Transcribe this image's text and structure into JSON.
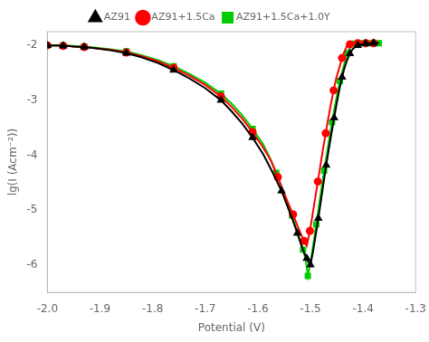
{
  "chart_data": {
    "type": "line",
    "xlabel": "Potential (V)",
    "ylabel": "lg(I (Acm⁻²))",
    "xlim": [
      -2.0,
      -1.3
    ],
    "ylim": [
      -6.5,
      -1.75
    ],
    "xticks": [
      {
        "value": -2.0,
        "label": "-2.0"
      },
      -1.9,
      -1.8,
      -1.7,
      -1.6,
      -1.5,
      -1.4,
      -1.3
    ],
    "yticks": [
      -6,
      -5,
      -4,
      -3,
      -2
    ],
    "grid": false,
    "legend": "top",
    "series": [
      {
        "name": "AZ91",
        "color": "black",
        "marker": "triangle",
        "x": [
          -2.0,
          -1.99,
          -1.98,
          -1.97,
          -1.96,
          -1.95,
          -1.93,
          -1.91,
          -1.88,
          -1.85,
          -1.82,
          -1.79,
          -1.76,
          -1.73,
          -1.7,
          -1.67,
          -1.65,
          -1.63,
          -1.61,
          -1.59,
          -1.57,
          -1.555,
          -1.545,
          -1.535,
          -1.525,
          -1.518,
          -1.512,
          -1.507,
          -1.503,
          -1.5,
          -1.5,
          -1.495,
          -1.49,
          -1.485,
          -1.48,
          -1.475,
          -1.47,
          -1.465,
          -1.46,
          -1.455,
          -1.45,
          -1.445,
          -1.44,
          -1.435,
          -1.43,
          -1.425,
          -1.42,
          -1.415,
          -1.41,
          -1.405,
          -1.4,
          -1.395,
          -1.39,
          -1.385,
          -1.38,
          -1.375,
          -1.37
        ],
        "values": [
          -2.0,
          -2.0,
          -2.0,
          -2.01,
          -2.01,
          -2.02,
          -2.03,
          -2.05,
          -2.09,
          -2.14,
          -2.22,
          -2.32,
          -2.45,
          -2.6,
          -2.78,
          -3.0,
          -3.2,
          -3.42,
          -3.68,
          -3.98,
          -4.35,
          -4.65,
          -4.9,
          -5.15,
          -5.42,
          -5.62,
          -5.78,
          -5.88,
          -5.96,
          -6.0,
          -6.0,
          -5.75,
          -5.45,
          -5.15,
          -4.82,
          -4.5,
          -4.18,
          -3.88,
          -3.6,
          -3.32,
          -3.05,
          -2.8,
          -2.58,
          -2.4,
          -2.26,
          -2.15,
          -2.07,
          -2.03,
          -2.0,
          -1.99,
          -1.98,
          -1.97,
          -1.97,
          -1.96,
          -1.96,
          -1.96,
          -1.95
        ]
      },
      {
        "name": "AZ91+1.5Ca",
        "color": "red",
        "marker": "circle",
        "x": [
          -2.0,
          -1.99,
          -1.98,
          -1.97,
          -1.96,
          -1.95,
          -1.93,
          -1.91,
          -1.88,
          -1.85,
          -1.82,
          -1.79,
          -1.76,
          -1.73,
          -1.7,
          -1.67,
          -1.65,
          -1.63,
          -1.61,
          -1.59,
          -1.575,
          -1.562,
          -1.552,
          -1.542,
          -1.533,
          -1.525,
          -1.518,
          -1.512,
          -1.507,
          -1.507,
          -1.501,
          -1.496,
          -1.491,
          -1.486,
          -1.481,
          -1.476,
          -1.471,
          -1.466,
          -1.461,
          -1.456,
          -1.451,
          -1.445,
          -1.44,
          -1.435,
          -1.43,
          -1.425,
          -1.42,
          -1.415,
          -1.41,
          -1.405,
          -1.4,
          -1.395,
          -1.39,
          -1.385,
          -1.38,
          -1.375,
          -1.37
        ],
        "values": [
          -2.0,
          -2.0,
          -2.0,
          -2.01,
          -2.01,
          -2.02,
          -2.03,
          -2.05,
          -2.08,
          -2.13,
          -2.2,
          -2.29,
          -2.41,
          -2.55,
          -2.72,
          -2.93,
          -3.12,
          -3.33,
          -3.58,
          -3.86,
          -4.1,
          -4.4,
          -4.65,
          -4.88,
          -5.08,
          -5.28,
          -5.44,
          -5.56,
          -5.65,
          -5.65,
          -5.38,
          -5.08,
          -4.78,
          -4.48,
          -4.18,
          -3.88,
          -3.6,
          -3.32,
          -3.06,
          -2.82,
          -2.6,
          -2.4,
          -2.23,
          -2.1,
          -2.0,
          -1.98,
          -1.97,
          -1.96,
          -1.96,
          -1.96,
          -1.96,
          -1.96,
          -1.96,
          -1.96,
          -1.96,
          -1.96,
          -1.96
        ]
      },
      {
        "name": "AZ91+1.5Ca+1.0Y",
        "color": "#00cc00",
        "marker": "square",
        "x": [
          -2.0,
          -1.99,
          -1.98,
          -1.97,
          -1.96,
          -1.95,
          -1.93,
          -1.91,
          -1.88,
          -1.85,
          -1.82,
          -1.79,
          -1.76,
          -1.73,
          -1.7,
          -1.67,
          -1.65,
          -1.63,
          -1.61,
          -1.59,
          -1.577,
          -1.565,
          -1.554,
          -1.544,
          -1.535,
          -1.527,
          -1.52,
          -1.514,
          -1.509,
          -1.505,
          -1.505,
          -1.499,
          -1.494,
          -1.489,
          -1.484,
          -1.479,
          -1.474,
          -1.469,
          -1.464,
          -1.459,
          -1.454,
          -1.449,
          -1.444,
          -1.439,
          -1.434,
          -1.43,
          -1.425,
          -1.42,
          -1.415,
          -1.41,
          -1.405,
          -1.4,
          -1.395,
          -1.39,
          -1.385,
          -1.38,
          -1.375,
          -1.37
        ],
        "values": [
          -2.0,
          -2.0,
          -2.0,
          -2.0,
          -2.01,
          -2.01,
          -2.02,
          -2.04,
          -2.07,
          -2.11,
          -2.18,
          -2.27,
          -2.38,
          -2.52,
          -2.68,
          -2.88,
          -3.06,
          -3.27,
          -3.52,
          -3.8,
          -4.05,
          -4.32,
          -4.6,
          -4.85,
          -5.1,
          -5.33,
          -5.55,
          -5.72,
          -5.9,
          -6.2,
          -6.2,
          -5.9,
          -5.58,
          -5.26,
          -4.93,
          -4.6,
          -4.28,
          -3.98,
          -3.68,
          -3.4,
          -3.13,
          -2.88,
          -2.65,
          -2.45,
          -2.28,
          -2.14,
          -2.04,
          -1.99,
          -1.97,
          -1.96,
          -1.96,
          -1.96,
          -1.96,
          -1.96,
          -1.96,
          -1.96,
          -1.96,
          -1.96
        ]
      }
    ]
  }
}
